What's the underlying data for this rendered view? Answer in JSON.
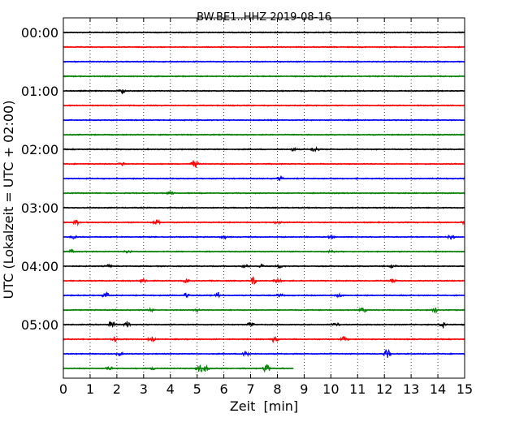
{
  "chart_data": {
    "type": "line",
    "title": "BW.BE1..HHZ 2019-08-16",
    "xlabel": "Zeit  [min]",
    "ylabel": "UTC (Lokalzeit = UTC + 02:00)",
    "xlim": [
      0,
      15
    ],
    "x_ticks": [
      "0",
      "1",
      "2",
      "3",
      "4",
      "5",
      "6",
      "7",
      "8",
      "9",
      "10",
      "11",
      "12",
      "13",
      "14",
      "15"
    ],
    "y_tick_labels": [
      "00:00",
      "01:00",
      "02:00",
      "03:00",
      "04:00",
      "05:00"
    ],
    "grid": "vertical dotted",
    "trace_colors": [
      "#000000",
      "#ff0000",
      "#0000ff",
      "#008000"
    ],
    "series": [
      {
        "start": "00:00",
        "end_minute": 15,
        "events": []
      },
      {
        "start": "00:15",
        "end_minute": 15,
        "events": []
      },
      {
        "start": "00:30",
        "end_minute": 15,
        "events": []
      },
      {
        "start": "00:45",
        "end_minute": 15,
        "events": []
      },
      {
        "start": "01:00",
        "end_minute": 15,
        "events": [
          {
            "x": 2.2,
            "a": 3
          }
        ]
      },
      {
        "start": "01:15",
        "end_minute": 15,
        "events": []
      },
      {
        "start": "01:30",
        "end_minute": 15,
        "events": []
      },
      {
        "start": "01:45",
        "end_minute": 15,
        "events": []
      },
      {
        "start": "02:00",
        "end_minute": 15,
        "events": [
          {
            "x": 8.6,
            "a": 2
          },
          {
            "x": 9.4,
            "a": 4
          }
        ]
      },
      {
        "start": "02:15",
        "end_minute": 15,
        "events": [
          {
            "x": 2.2,
            "a": 2
          },
          {
            "x": 4.9,
            "a": 5
          }
        ]
      },
      {
        "start": "02:30",
        "end_minute": 15,
        "events": [
          {
            "x": 8.1,
            "a": 2
          }
        ]
      },
      {
        "start": "02:45",
        "end_minute": 15,
        "events": [
          {
            "x": 4.0,
            "a": 2
          }
        ]
      },
      {
        "start": "03:00",
        "end_minute": 15,
        "events": []
      },
      {
        "start": "03:15",
        "end_minute": 15,
        "events": [
          {
            "x": 0.5,
            "a": 3
          },
          {
            "x": 3.5,
            "a": 3
          },
          {
            "x": 8.0,
            "a": 2
          },
          {
            "x": 15.0,
            "a": 3
          }
        ]
      },
      {
        "start": "03:30",
        "end_minute": 15,
        "events": [
          {
            "x": 0.4,
            "a": 2
          },
          {
            "x": 6.0,
            "a": 2
          },
          {
            "x": 10.0,
            "a": 2
          },
          {
            "x": 14.5,
            "a": 3
          }
        ]
      },
      {
        "start": "03:45",
        "end_minute": 15,
        "events": [
          {
            "x": 0.3,
            "a": 2
          },
          {
            "x": 2.4,
            "a": 2
          },
          {
            "x": 10.0,
            "a": 2
          }
        ]
      },
      {
        "start": "04:00",
        "end_minute": 15,
        "events": [
          {
            "x": 1.7,
            "a": 2
          },
          {
            "x": 6.8,
            "a": 2
          },
          {
            "x": 7.4,
            "a": 2
          },
          {
            "x": 8.1,
            "a": 2
          },
          {
            "x": 12.3,
            "a": 2
          }
        ]
      },
      {
        "start": "04:15",
        "end_minute": 15,
        "events": [
          {
            "x": 3.0,
            "a": 3
          },
          {
            "x": 4.6,
            "a": 2
          },
          {
            "x": 7.1,
            "a": 5
          },
          {
            "x": 8.0,
            "a": 3
          },
          {
            "x": 12.3,
            "a": 2
          }
        ]
      },
      {
        "start": "04:30",
        "end_minute": 15,
        "events": [
          {
            "x": 1.6,
            "a": 4
          },
          {
            "x": 4.6,
            "a": 3
          },
          {
            "x": 5.8,
            "a": 4
          },
          {
            "x": 8.1,
            "a": 2
          },
          {
            "x": 10.3,
            "a": 2
          }
        ]
      },
      {
        "start": "04:45",
        "end_minute": 15,
        "events": [
          {
            "x": 3.3,
            "a": 2
          },
          {
            "x": 5.0,
            "a": 2
          },
          {
            "x": 11.2,
            "a": 3
          },
          {
            "x": 13.9,
            "a": 3
          }
        ]
      },
      {
        "start": "05:00",
        "end_minute": 15,
        "events": [
          {
            "x": 1.8,
            "a": 6
          },
          {
            "x": 2.4,
            "a": 4
          },
          {
            "x": 7.0,
            "a": 4
          },
          {
            "x": 10.2,
            "a": 2
          },
          {
            "x": 14.2,
            "a": 4
          }
        ]
      },
      {
        "start": "05:15",
        "end_minute": 15,
        "events": [
          {
            "x": 1.9,
            "a": 3
          },
          {
            "x": 3.3,
            "a": 3
          },
          {
            "x": 7.9,
            "a": 4
          },
          {
            "x": 10.5,
            "a": 3
          }
        ]
      },
      {
        "start": "05:30",
        "end_minute": 15,
        "events": [
          {
            "x": 2.1,
            "a": 2
          },
          {
            "x": 6.8,
            "a": 6
          },
          {
            "x": 12.1,
            "a": 6
          }
        ]
      },
      {
        "start": "05:45",
        "end_minute": 8.6,
        "events": [
          {
            "x": 1.7,
            "a": 3
          },
          {
            "x": 3.4,
            "a": 2
          },
          {
            "x": 5.1,
            "a": 5
          },
          {
            "x": 5.3,
            "a": 4
          },
          {
            "x": 7.6,
            "a": 6
          }
        ]
      }
    ]
  }
}
